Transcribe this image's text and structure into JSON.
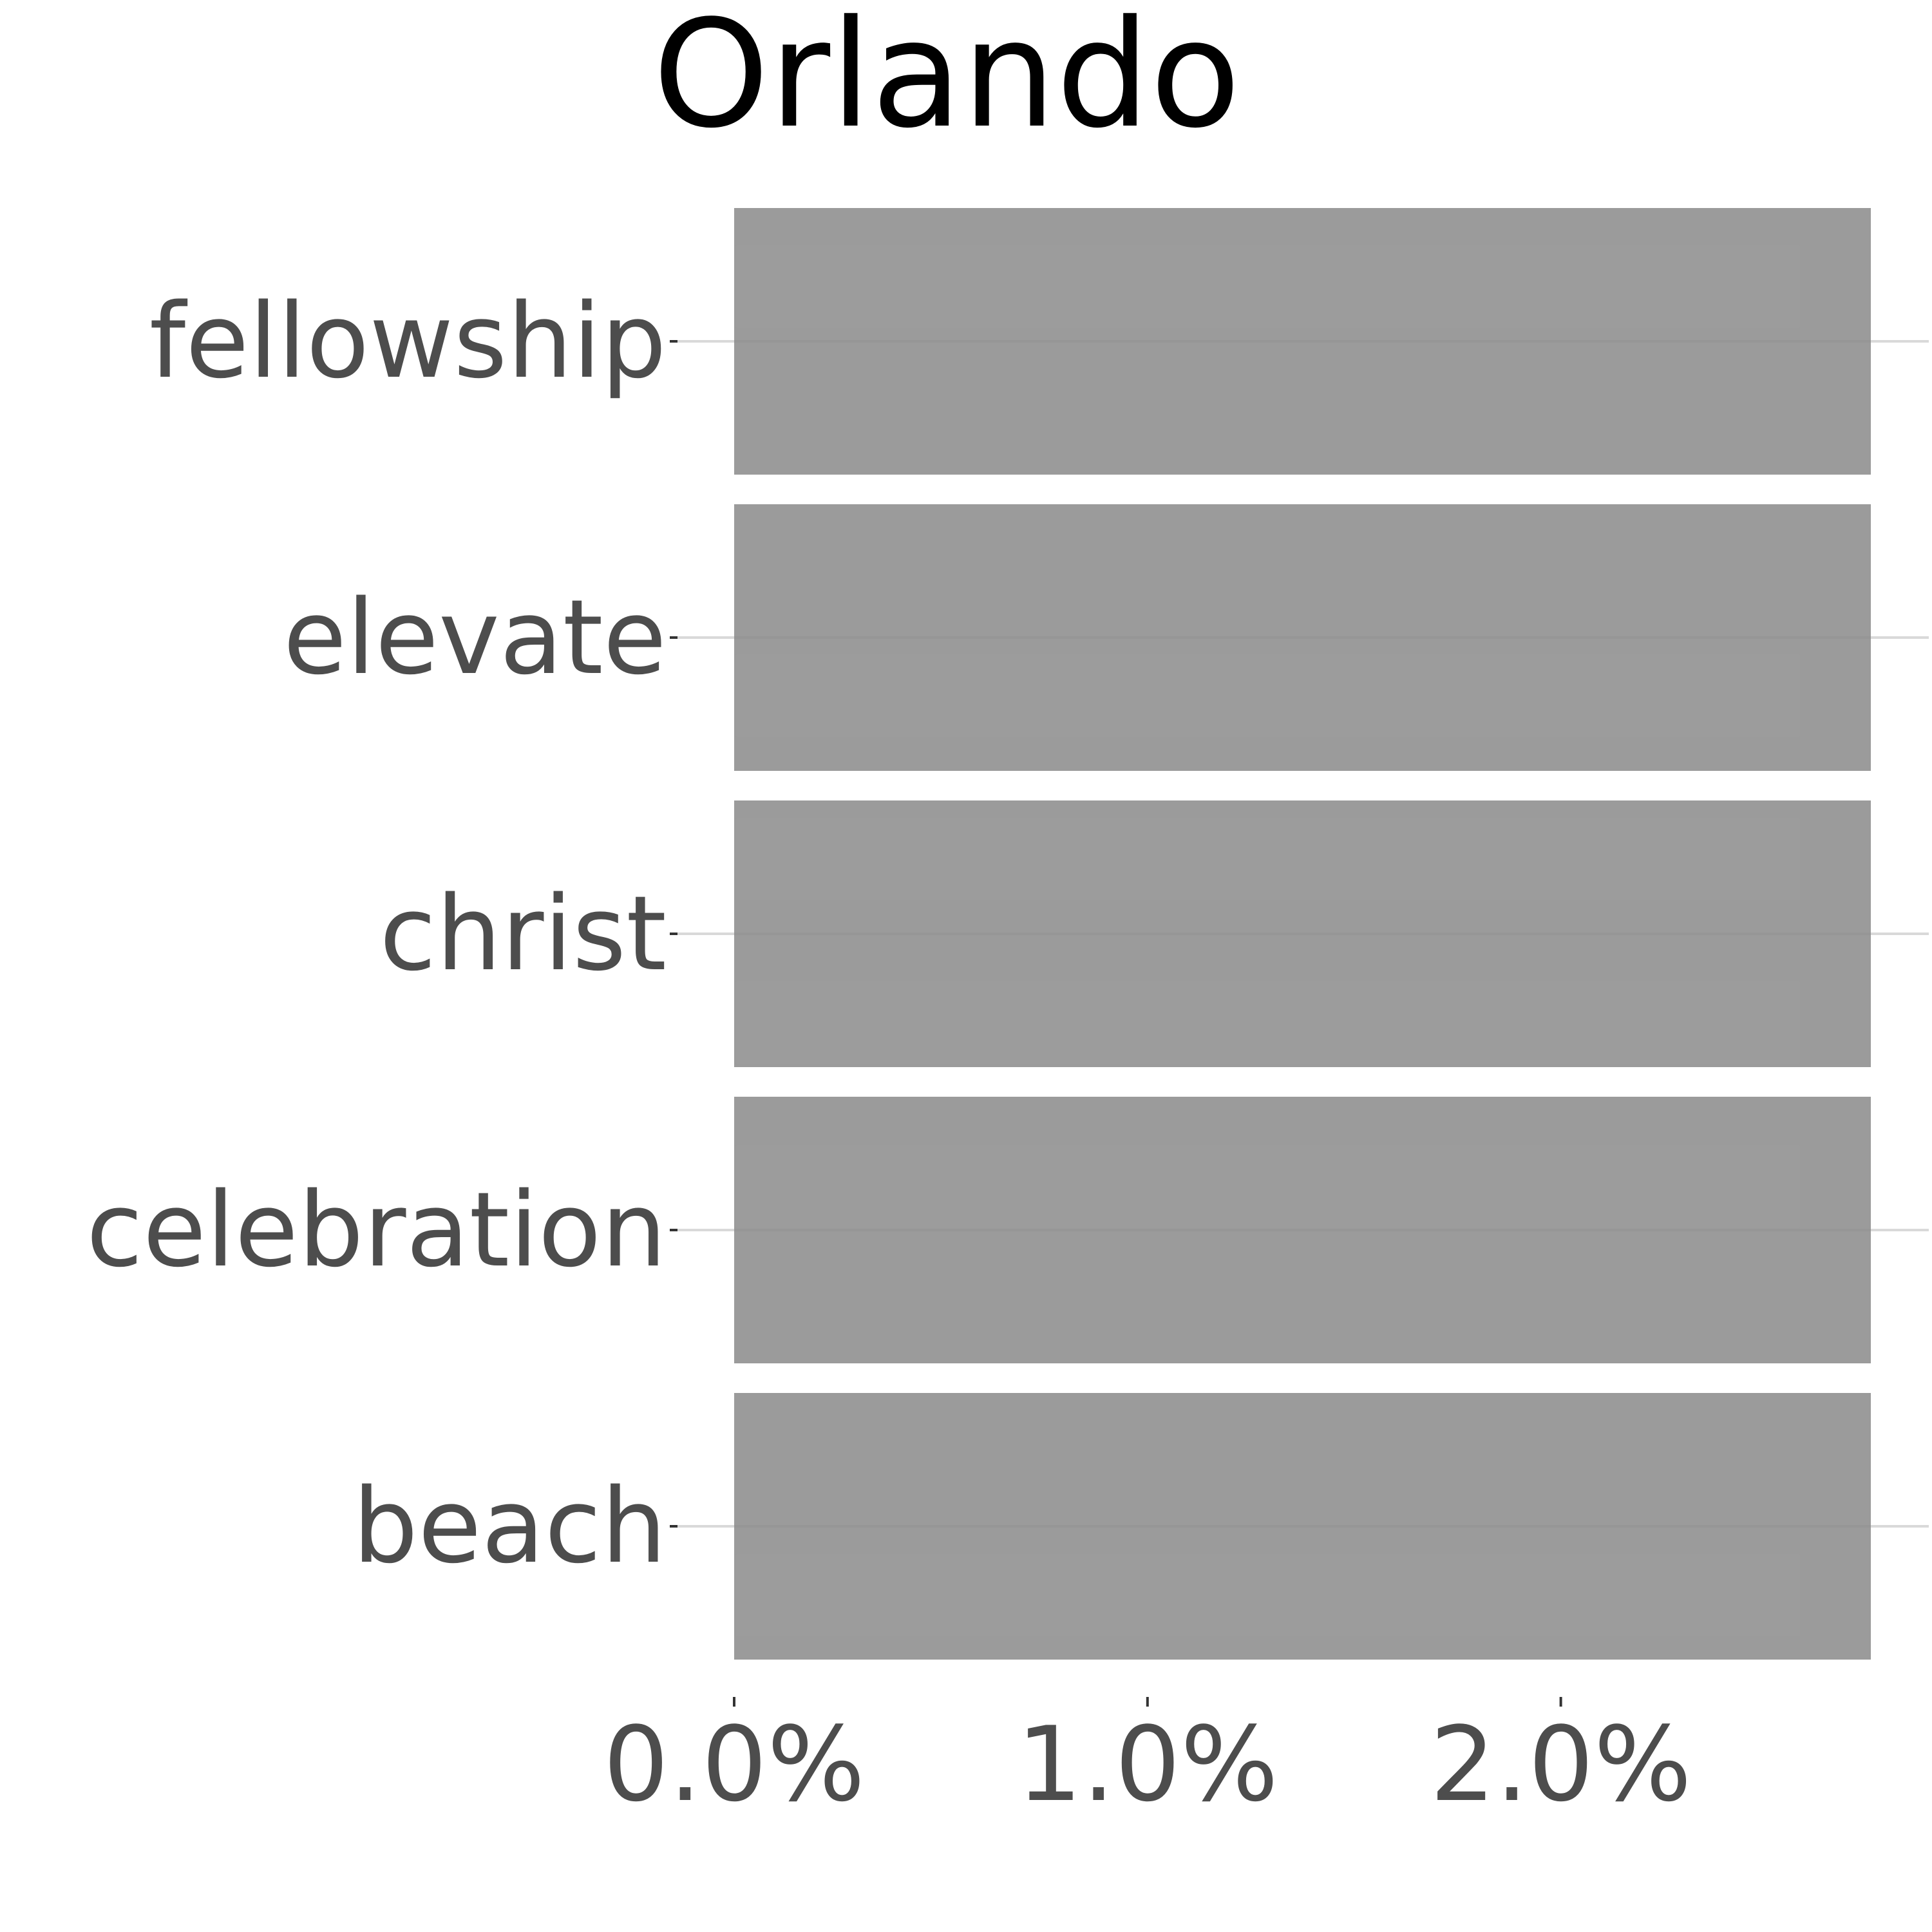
{
  "chart_data": {
    "type": "bar",
    "orientation": "horizontal",
    "title": "Orlando",
    "categories": [
      "fellowship",
      "elevate",
      "christ",
      "celebration",
      "beach"
    ],
    "values": [
      2.75,
      2.75,
      2.75,
      2.75,
      2.75
    ],
    "xlim": [
      0,
      2.75
    ],
    "xticks": [
      0,
      1,
      2
    ],
    "xtick_labels": [
      "0.0%",
      "1.0%",
      "2.0%"
    ],
    "xlabel": "",
    "ylabel": "",
    "grid": "horizontal-major",
    "legend": "none",
    "colors": {
      "bar": "#8a8a8a",
      "grid": "#d9d9d9",
      "text": "#4d4d4d",
      "title": "#000000",
      "tick": "#333333"
    }
  }
}
